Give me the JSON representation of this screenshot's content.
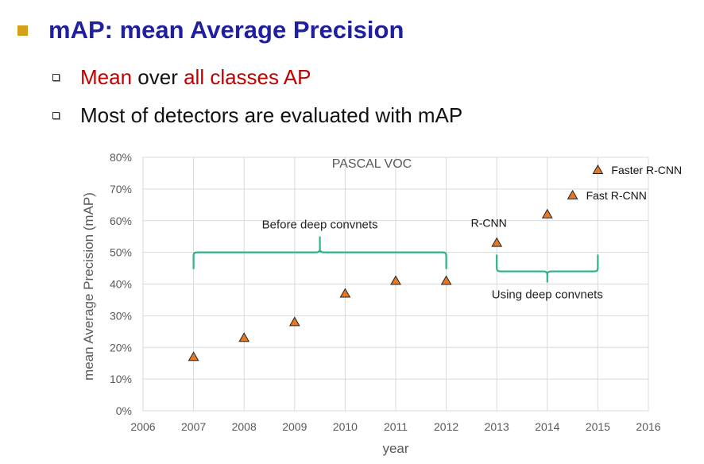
{
  "heading": {
    "title": "mAP: mean Average Precision",
    "bullet_color": "#d4a017",
    "title_color": "#1f1fa0"
  },
  "bullets": [
    {
      "parts": [
        {
          "text": "Mean",
          "color": "red"
        },
        {
          "text": " over ",
          "color": "dark"
        },
        {
          "text": "all classes AP",
          "color": "red"
        }
      ]
    },
    {
      "parts": [
        {
          "text": "Most of detectors are evaluated with mAP",
          "color": "dark"
        }
      ]
    }
  ],
  "chart_data": {
    "type": "scatter",
    "title": "PASCAL VOC",
    "xlabel": "year",
    "ylabel": "mean Average Precision (mAP)",
    "xlim": [
      2006,
      2016
    ],
    "ylim": [
      0,
      80
    ],
    "x_ticks": [
      "2006",
      "2007",
      "2008",
      "2009",
      "2010",
      "2011",
      "2012",
      "2013",
      "2014",
      "2015",
      "2016"
    ],
    "y_ticks": [
      "0%",
      "10%",
      "20%",
      "30%",
      "40%",
      "50%",
      "60%",
      "70%",
      "80%"
    ],
    "grid": true,
    "marker_color": "#e87722",
    "brace_color": "#2bb38a",
    "points": [
      {
        "x": 2007,
        "y": 17,
        "label": ""
      },
      {
        "x": 2008,
        "y": 23,
        "label": ""
      },
      {
        "x": 2009,
        "y": 28,
        "label": ""
      },
      {
        "x": 2010,
        "y": 37,
        "label": ""
      },
      {
        "x": 2011,
        "y": 41,
        "label": ""
      },
      {
        "x": 2012,
        "y": 41,
        "label": ""
      },
      {
        "x": 2013,
        "y": 53,
        "label": "R-CNN"
      },
      {
        "x": 2014,
        "y": 62,
        "label": ""
      },
      {
        "x": 2014.5,
        "y": 68,
        "label": "Fast R-CNN"
      },
      {
        "x": 2015,
        "y": 76,
        "label": "Faster R-CNN"
      }
    ],
    "annotations": [
      {
        "text": "Before deep convnets",
        "x_start": 2007,
        "x_end": 2012,
        "y": 50,
        "direction": "up"
      },
      {
        "text": "Using deep convnets",
        "x_start": 2013,
        "x_end": 2015,
        "y": 44,
        "direction": "down"
      }
    ]
  }
}
